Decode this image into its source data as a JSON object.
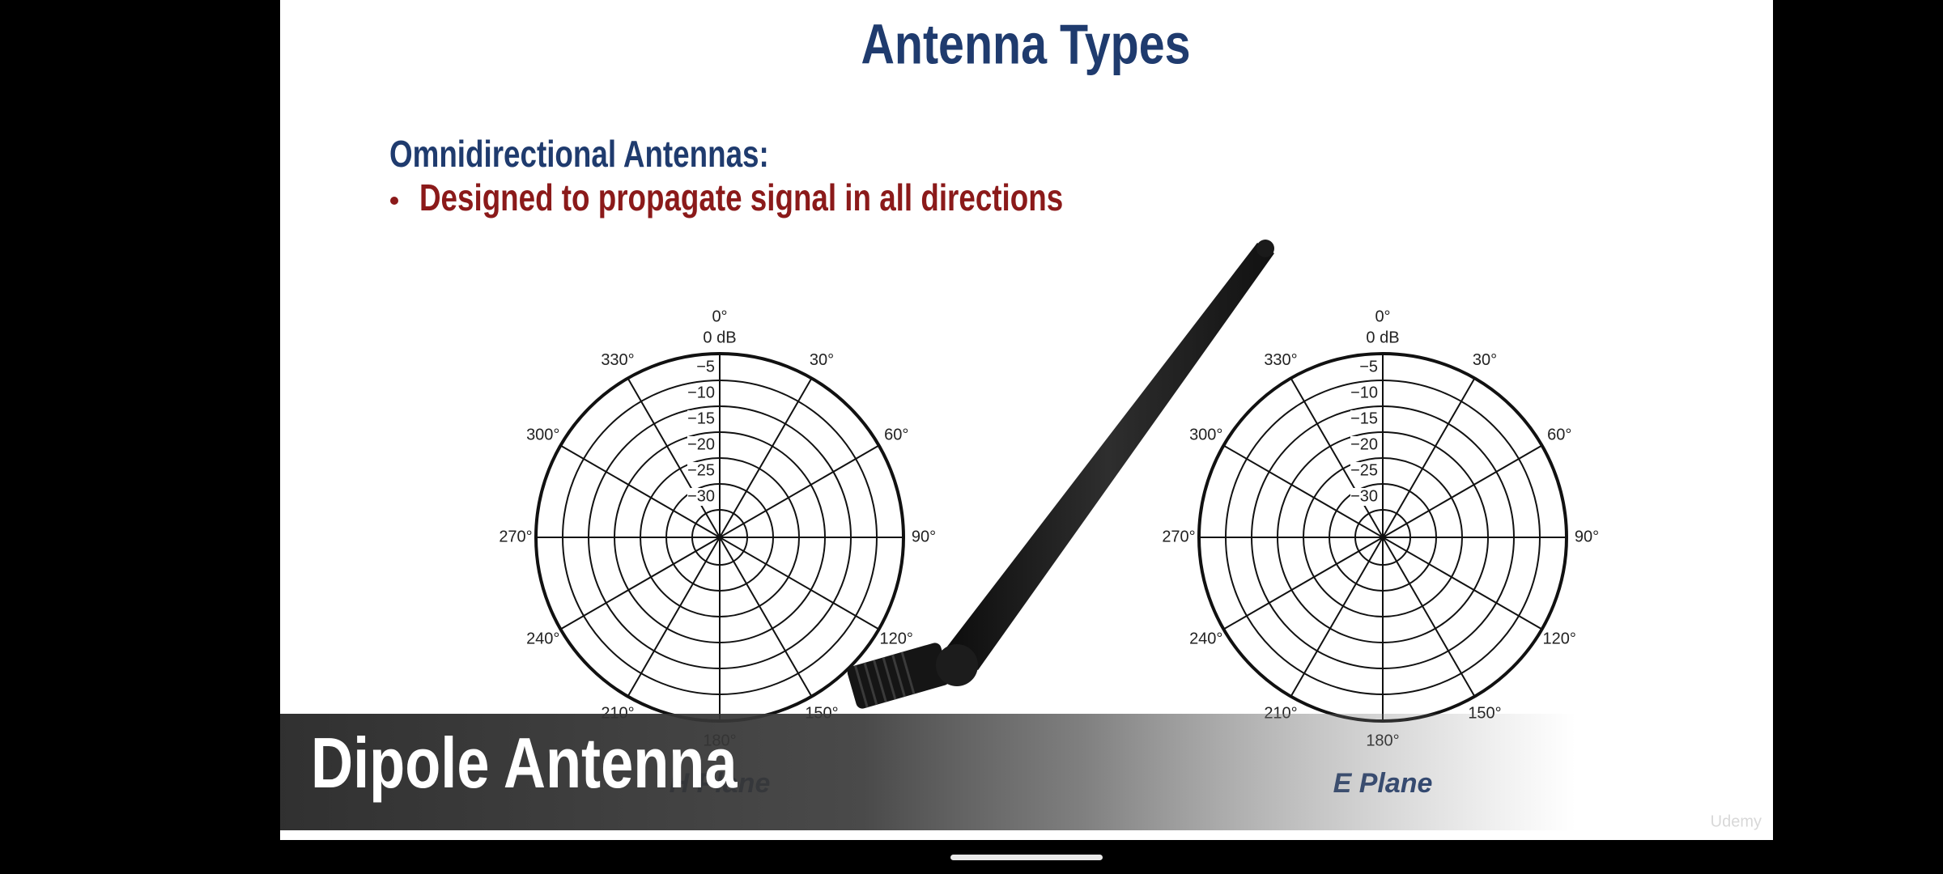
{
  "header": {
    "title": "Antenna Types"
  },
  "content": {
    "heading": "Omnidirectional Antennas:",
    "bullets": [
      "Designed to propagate signal in all directions"
    ]
  },
  "diagrams": [
    {
      "angle_labels": [
        "0°",
        "30°",
        "60°",
        "90°",
        "120°",
        "150°",
        "180°",
        "210°",
        "240°",
        "270°",
        "300°",
        "330°"
      ],
      "db_labels": [
        "0 dB",
        "−5",
        "−10",
        "−15",
        "−20",
        "−25",
        "−30"
      ],
      "plane_label": "H Plane"
    },
    {
      "angle_labels": [
        "0°",
        "30°",
        "60°",
        "90°",
        "120°",
        "150°",
        "180°",
        "210°",
        "240°",
        "270°",
        "300°",
        "330°"
      ],
      "db_labels": [
        "0 dB",
        "−5",
        "−10",
        "−15",
        "−20",
        "−25",
        "−30"
      ],
      "plane_label": "E Plane"
    }
  ],
  "caption": "Dipole Antenna",
  "watermark": "Udemy"
}
